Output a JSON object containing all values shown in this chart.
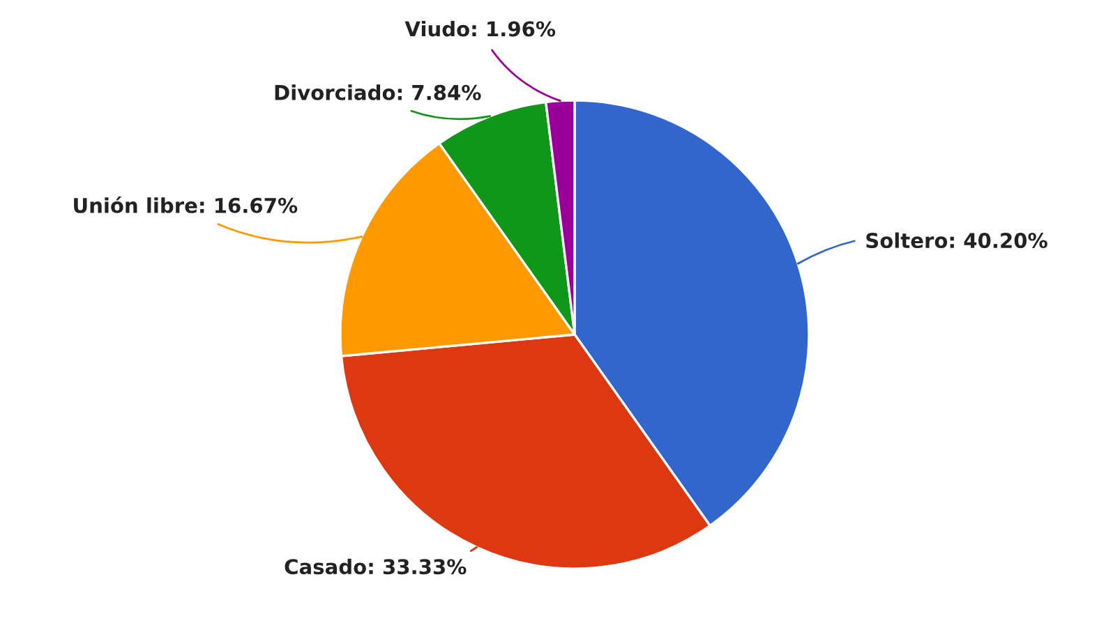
{
  "chart_data": {
    "type": "pie",
    "categories": [
      "Soltero",
      "Casado",
      "Unión libre",
      "Divorciado",
      "Viudo"
    ],
    "values": [
      40.2,
      33.33,
      16.67,
      7.84,
      1.96
    ],
    "value_labels": [
      "40.20%",
      "33.33%",
      "16.67%",
      "7.84%",
      "1.96%"
    ],
    "colors": [
      "#3366cc",
      "#dc3912",
      "#ff9900",
      "#109618",
      "#990099"
    ],
    "legend": false
  }
}
